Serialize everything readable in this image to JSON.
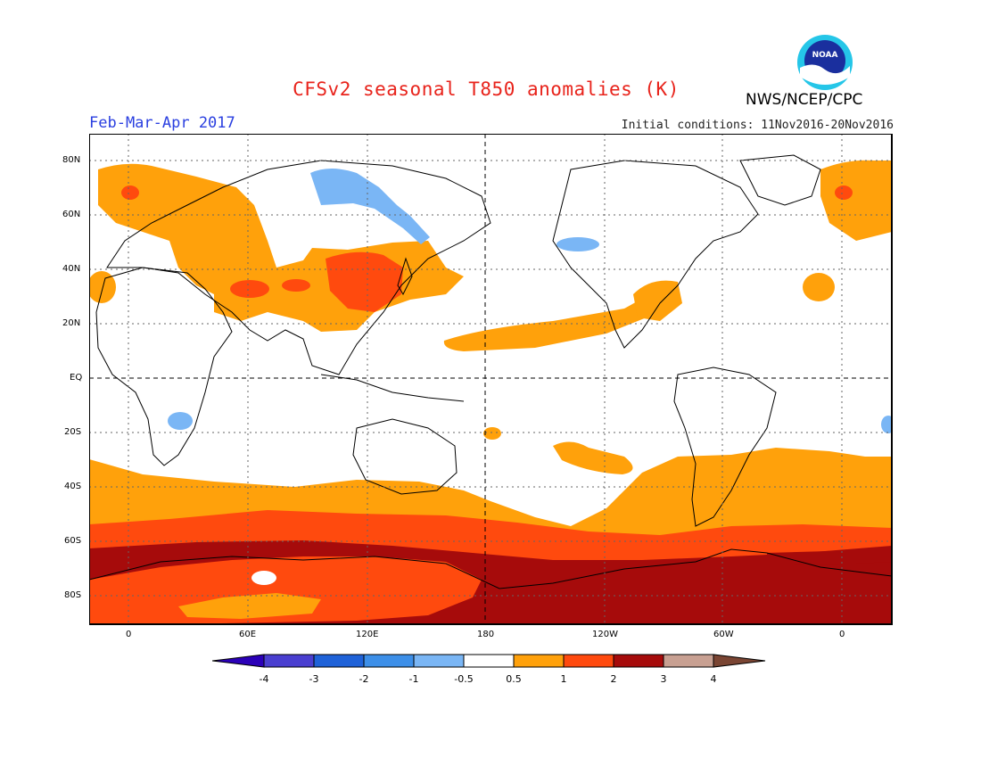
{
  "title": "CFSv2 seasonal T850 anomalies (K)",
  "agency": "NWS/NCEP/CPC",
  "logo_text": "NOAA",
  "period": "Feb-Mar-Apr 2017",
  "initial_conditions": "Initial conditions: 11Nov2016-20Nov2016",
  "lat_labels": [
    "80N",
    "60N",
    "40N",
    "20N",
    "EQ",
    "20S",
    "40S",
    "60S",
    "80S"
  ],
  "lon_labels": [
    "0",
    "60E",
    "120E",
    "180",
    "120W",
    "60W",
    "0"
  ],
  "colorbar": {
    "labels": [
      "-4",
      "-3",
      "-2",
      "-1",
      "-0.5",
      "0.5",
      "1",
      "2",
      "3",
      "4"
    ],
    "colors": [
      "#2b00b8",
      "#4a3fd0",
      "#1f62d8",
      "#3d8fe8",
      "#7ab6f5",
      "#ffffff",
      "#ffa10b",
      "#ff4a0e",
      "#a60b0b",
      "#c8a092",
      "#7a4533"
    ]
  },
  "colors": {
    "warm1": "#ffa10b",
    "warm2": "#ff4a0e",
    "warm3": "#a60b0b",
    "cool1": "#7ab6f5",
    "title": "#e8231b",
    "period": "#2a3fe0"
  }
}
